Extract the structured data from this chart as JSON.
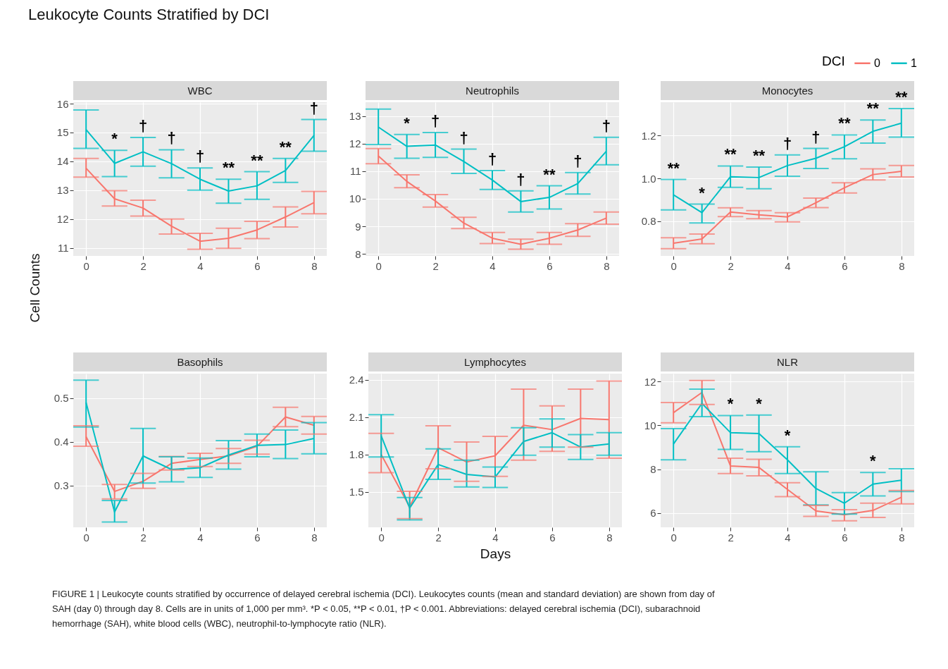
{
  "chart_data": [
    {
      "type": "line",
      "title": "WBC",
      "ylabel": "Cell Counts",
      "x": [
        0,
        1,
        2,
        3,
        4,
        5,
        6,
        7,
        8
      ],
      "xlim": [
        -0.45,
        8.45
      ],
      "xticks": [
        0,
        2,
        4,
        6,
        8
      ],
      "ylim": [
        10.72,
        16.05
      ],
      "yticks": [
        11,
        12,
        13,
        14,
        15,
        16
      ],
      "grid": true,
      "series": [
        {
          "color": "#f8766d",
          "values": [
            13.76,
            12.7,
            12.38,
            11.75,
            11.23,
            11.33,
            11.62,
            12.07,
            12.57
          ],
          "errors": [
            [
              13.45,
              14.1
            ],
            [
              12.45,
              12.98
            ],
            [
              12.1,
              12.65
            ],
            [
              11.48,
              12.0
            ],
            [
              10.95,
              11.5
            ],
            [
              10.98,
              11.68
            ],
            [
              11.32,
              11.92
            ],
            [
              11.72,
              12.42
            ],
            [
              12.18,
              12.96
            ]
          ]
        },
        {
          "color": "#00bfc4",
          "values": [
            15.1,
            13.93,
            14.33,
            13.92,
            13.38,
            12.97,
            13.15,
            13.68,
            14.9
          ],
          "errors": [
            [
              14.45,
              15.78
            ],
            [
              13.47,
              14.38
            ],
            [
              13.83,
              14.83
            ],
            [
              13.43,
              14.4
            ],
            [
              13.0,
              13.77
            ],
            [
              12.55,
              13.38
            ],
            [
              12.68,
              13.64
            ],
            [
              13.27,
              14.1
            ],
            [
              14.35,
              15.45
            ]
          ]
        }
      ],
      "annotations": [
        "Leukocyte Counts Stratified by DCI",
        {
          "text": "*",
          "x": 1,
          "y": 14.38
        },
        {
          "text": "†",
          "x": 2,
          "y": 14.83
        },
        {
          "text": "†",
          "x": 3,
          "y": 14.4
        },
        {
          "text": "†",
          "x": 4,
          "y": 13.77
        },
        {
          "text": "**",
          "x": 5,
          "y": 13.38
        },
        {
          "text": "**",
          "x": 6,
          "y": 13.64
        },
        {
          "text": "**",
          "x": 7,
          "y": 14.1
        },
        {
          "text": "†",
          "x": 8,
          "y": 15.45
        }
      ]
    },
    {
      "type": "line",
      "title": "Neutrophils",
      "x": [
        0,
        1,
        2,
        3,
        4,
        5,
        6,
        7,
        8
      ],
      "xlim": [
        -0.45,
        8.45
      ],
      "xticks": [
        0,
        2,
        4,
        6,
        8
      ],
      "ylim": [
        7.93,
        13.5
      ],
      "yticks": [
        8,
        9,
        10,
        11,
        12,
        13
      ],
      "grid": true,
      "series": [
        {
          "color": "#f8766d",
          "values": [
            11.55,
            10.63,
            9.92,
            9.12,
            8.57,
            8.35,
            8.57,
            8.87,
            9.3
          ],
          "errors": [
            [
              11.27,
              11.82
            ],
            [
              10.4,
              10.87
            ],
            [
              9.7,
              10.15
            ],
            [
              8.92,
              9.33
            ],
            [
              8.38,
              8.78
            ],
            [
              8.17,
              8.54
            ],
            [
              8.35,
              8.78
            ],
            [
              8.64,
              9.1
            ],
            [
              9.08,
              9.52
            ]
          ]
        },
        {
          "color": "#00bfc4",
          "values": [
            12.6,
            11.9,
            11.95,
            11.35,
            10.68,
            9.9,
            10.05,
            10.55,
            11.72
          ],
          "errors": [
            [
              11.97,
              13.25
            ],
            [
              11.47,
              12.33
            ],
            [
              11.5,
              12.4
            ],
            [
              10.92,
              11.8
            ],
            [
              10.34,
              11.02
            ],
            [
              9.52,
              10.29
            ],
            [
              9.63,
              10.47
            ],
            [
              10.17,
              10.95
            ],
            [
              11.23,
              12.23
            ]
          ]
        }
      ],
      "annotations": [
        {
          "text": "*",
          "x": 1,
          "y": 12.33
        },
        {
          "text": "†",
          "x": 2,
          "y": 12.4
        },
        {
          "text": "†",
          "x": 3,
          "y": 11.8
        },
        {
          "text": "†",
          "x": 4,
          "y": 11.02
        },
        {
          "text": "†",
          "x": 5,
          "y": 10.29
        },
        {
          "text": "**",
          "x": 6,
          "y": 10.47
        },
        {
          "text": "†",
          "x": 7,
          "y": 10.95
        },
        {
          "text": "†",
          "x": 8,
          "y": 12.23
        }
      ]
    },
    {
      "type": "line",
      "title": "Monocytes",
      "legend": "top right",
      "legend_title": "DCI",
      "x": [
        0,
        1,
        2,
        3,
        4,
        5,
        6,
        7,
        8
      ],
      "xlim": [
        -0.45,
        8.45
      ],
      "xticks": [
        0,
        2,
        4,
        6,
        8
      ],
      "ylim": [
        0.638,
        1.356
      ],
      "yticks": [
        {
          "value": 0.8,
          "label": "0.8"
        },
        {
          "value": 1.0,
          "label": "1.0"
        },
        {
          "value": 1.2,
          "label": "1.2"
        }
      ],
      "grid": true,
      "series": [
        {
          "name": "0",
          "color": "#f8766d",
          "values": [
            0.697,
            0.717,
            0.843,
            0.83,
            0.82,
            0.886,
            0.956,
            1.018,
            1.033
          ],
          "errors": [
            [
              0.672,
              0.723
            ],
            [
              0.695,
              0.74
            ],
            [
              0.822,
              0.863
            ],
            [
              0.812,
              0.85
            ],
            [
              0.797,
              0.84
            ],
            [
              0.864,
              0.908
            ],
            [
              0.932,
              0.98
            ],
            [
              0.993,
              1.045
            ],
            [
              1.007,
              1.06
            ]
          ]
        },
        {
          "name": "1",
          "color": "#00bfc4",
          "values": [
            0.923,
            0.84,
            1.008,
            1.004,
            1.06,
            1.094,
            1.148,
            1.22,
            1.258
          ],
          "errors": [
            [
              0.853,
              0.995
            ],
            [
              0.792,
              0.88
            ],
            [
              0.958,
              1.058
            ],
            [
              0.952,
              1.053
            ],
            [
              1.01,
              1.11
            ],
            [
              1.046,
              1.14
            ],
            [
              1.092,
              1.203
            ],
            [
              1.165,
              1.273
            ],
            [
              1.193,
              1.326
            ]
          ]
        }
      ],
      "annotations": [
        {
          "text": "**",
          "x": 0,
          "y": 0.995
        },
        {
          "text": "*",
          "x": 1,
          "y": 0.88
        },
        {
          "text": "**",
          "x": 2,
          "y": 1.058
        },
        {
          "text": "**",
          "x": 3,
          "y": 1.053
        },
        {
          "text": "†",
          "x": 4,
          "y": 1.11
        },
        {
          "text": "†",
          "x": 5,
          "y": 1.14
        },
        {
          "text": "**",
          "x": 6,
          "y": 1.203
        },
        {
          "text": "**",
          "x": 7,
          "y": 1.273
        },
        {
          "text": "**",
          "x": 8,
          "y": 1.326
        }
      ]
    },
    {
      "type": "line",
      "title": "Basophils",
      "x": [
        0,
        1,
        2,
        3,
        4,
        5,
        6,
        7,
        8
      ],
      "xlim": [
        -0.45,
        8.45
      ],
      "xticks": [
        0,
        2,
        4,
        6,
        8
      ],
      "ylim": [
        0.205,
        0.556
      ],
      "yticks": [
        0.3,
        0.4,
        0.5
      ],
      "grid": true,
      "series": [
        {
          "color": "#f8766d",
          "values": [
            0.412,
            0.287,
            0.31,
            0.351,
            0.36,
            0.368,
            0.39,
            0.457,
            0.438
          ],
          "errors": [
            [
              0.39,
              0.437
            ],
            [
              0.27,
              0.303
            ],
            [
              0.294,
              0.328
            ],
            [
              0.336,
              0.367
            ],
            [
              0.344,
              0.374
            ],
            [
              0.351,
              0.385
            ],
            [
              0.372,
              0.404
            ],
            [
              0.435,
              0.479
            ],
            [
              0.418,
              0.458
            ]
          ]
        },
        {
          "color": "#00bfc4",
          "values": [
            0.49,
            0.24,
            0.368,
            0.337,
            0.341,
            0.37,
            0.392,
            0.394,
            0.408
          ],
          "errors": [
            [
              0.434,
              0.541
            ],
            [
              0.217,
              0.266
            ],
            [
              0.306,
              0.431
            ],
            [
              0.309,
              0.366
            ],
            [
              0.319,
              0.363
            ],
            [
              0.338,
              0.403
            ],
            [
              0.366,
              0.418
            ],
            [
              0.362,
              0.427
            ],
            [
              0.373,
              0.444
            ]
          ]
        }
      ]
    },
    {
      "type": "line",
      "title": "Lymphocytes",
      "xlabel": "Days",
      "x": [
        0,
        1,
        2,
        3,
        4,
        5,
        6,
        7,
        8
      ],
      "xlim": [
        -0.45,
        8.45
      ],
      "xticks": [
        0,
        2,
        4,
        6,
        8
      ],
      "ylim": [
        1.216,
        2.449
      ],
      "yticks": [
        1.5,
        1.8,
        2.1,
        2.4
      ],
      "grid": true,
      "series": [
        {
          "color": "#f8766d",
          "values": [
            1.8,
            1.38,
            1.855,
            1.74,
            1.79,
            2.035,
            2.0,
            2.09,
            2.08
          ],
          "errors": [
            [
              1.655,
              1.97
            ],
            [
              1.285,
              1.505
            ],
            [
              1.685,
              2.03
            ],
            [
              1.585,
              1.9
            ],
            [
              1.625,
              1.945
            ],
            [
              1.755,
              2.325
            ],
            [
              1.825,
              2.19
            ],
            [
              1.86,
              2.325
            ],
            [
              1.77,
              2.39
            ]
          ]
        },
        {
          "color": "#00bfc4",
          "values": [
            1.95,
            1.37,
            1.72,
            1.64,
            1.62,
            1.905,
            1.975,
            1.86,
            1.885
          ],
          "errors": [
            [
              1.78,
              2.12
            ],
            [
              1.275,
              1.455
            ],
            [
              1.6,
              1.845
            ],
            [
              1.54,
              1.755
            ],
            [
              1.535,
              1.7
            ],
            [
              1.795,
              2.015
            ],
            [
              1.86,
              2.085
            ],
            [
              1.76,
              1.96
            ],
            [
              1.795,
              1.975
            ]
          ]
        }
      ]
    },
    {
      "type": "line",
      "title": "NLR",
      "x": [
        0,
        1,
        2,
        3,
        4,
        5,
        6,
        7,
        8
      ],
      "xlim": [
        -0.45,
        8.45
      ],
      "xticks": [
        0,
        2,
        4,
        6,
        8
      ],
      "ylim": [
        5.35,
        12.36
      ],
      "yticks": [
        6,
        8,
        10,
        12
      ],
      "grid": true,
      "series": [
        {
          "color": "#f8766d",
          "values": [
            10.58,
            11.5,
            8.15,
            8.08,
            7.08,
            6.1,
            5.92,
            6.12,
            6.72
          ],
          "errors": [
            [
              10.12,
              11.04
            ],
            [
              10.95,
              12.05
            ],
            [
              7.8,
              8.5
            ],
            [
              7.7,
              8.45
            ],
            [
              6.75,
              7.38
            ],
            [
              5.85,
              6.35
            ],
            [
              5.65,
              6.15
            ],
            [
              5.8,
              6.45
            ],
            [
              6.42,
              7.03
            ]
          ]
        },
        {
          "color": "#00bfc4",
          "values": [
            9.15,
            11.0,
            9.67,
            9.63,
            8.43,
            7.12,
            6.45,
            7.32,
            7.5
          ],
          "errors": [
            [
              8.43,
              9.85
            ],
            [
              10.4,
              11.65
            ],
            [
              8.9,
              10.45
            ],
            [
              8.8,
              10.47
            ],
            [
              7.8,
              9.02
            ],
            [
              6.37,
              7.88
            ],
            [
              5.95,
              6.93
            ],
            [
              6.78,
              7.85
            ],
            [
              6.98,
              8.02
            ]
          ]
        }
      ],
      "annotations": [
        {
          "text": "*",
          "x": 2,
          "y": 10.45
        },
        {
          "text": "*",
          "x": 3,
          "y": 10.47
        },
        {
          "text": "*",
          "x": 4,
          "y": 9.02
        },
        {
          "text": "*",
          "x": 7,
          "y": 7.85
        },
        "FIGURE 1 | Leukocyte counts stratified by occurrence of delayed cerebral ischemia (DCI). Leukocytes counts (mean and standard deviation) are shown from day of SAH (day 0) through day 8. Cells are in units of 1,000 per mm³. *P < 0.05, **P < 0.01, †P < 0.001. Abbreviations: delayed cerebral ischemia (DCI), subarachnoid hemorrhage (SAH), white blood cells (WBC), neutrophil-to-lymphocyte ratio (NLR)."
      ]
    }
  ]
}
